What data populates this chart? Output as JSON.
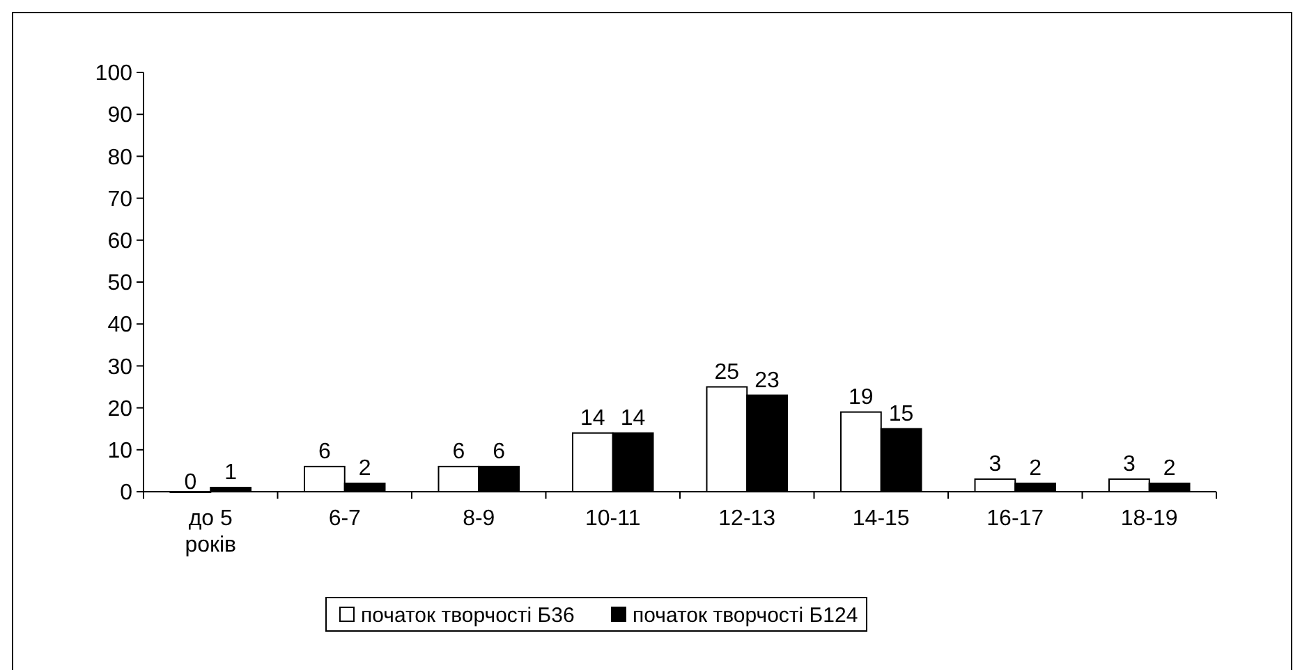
{
  "chart_data": {
    "type": "bar",
    "categories": [
      "до 5\nроків",
      "6-7",
      "8-9",
      "10-11",
      "12-13",
      "14-15",
      "16-17",
      "18-19"
    ],
    "series": [
      {
        "name": "початок творчості Б36",
        "color": "#ffffff",
        "values": [
          0,
          6,
          6,
          14,
          25,
          19,
          3,
          3
        ]
      },
      {
        "name": "початок творчості Б124",
        "color": "#000000",
        "values": [
          1,
          2,
          6,
          14,
          23,
          15,
          2,
          2
        ]
      }
    ],
    "ylim": [
      0,
      100
    ],
    "yticks": [
      0,
      10,
      20,
      30,
      40,
      50,
      60,
      70,
      80,
      90,
      100
    ],
    "data_labels": true,
    "legend": "bottom",
    "grid": false
  }
}
